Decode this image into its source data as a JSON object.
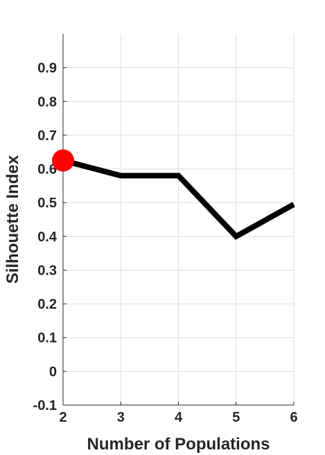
{
  "chart_data": {
    "type": "line",
    "title": "",
    "xlabel": "Number of Populations",
    "ylabel": "Silhouette Index",
    "x": [
      2,
      3,
      4,
      5,
      6
    ],
    "y": [
      0.625,
      0.58,
      0.58,
      0.4,
      0.495
    ],
    "xlim": [
      2,
      6
    ],
    "ylim": [
      -0.1,
      1.0
    ],
    "xticks": [
      "2",
      "3",
      "4",
      "5",
      "6"
    ],
    "yticks": [
      "-0.1",
      "0",
      "0.1",
      "0.2",
      "0.3",
      "0.4",
      "0.5",
      "0.6",
      "0.7",
      "0.8",
      "0.9"
    ],
    "grid": true,
    "line_color": "#000000",
    "highlight": {
      "x": 2,
      "y": 0.625,
      "color": "#ff0000"
    }
  }
}
